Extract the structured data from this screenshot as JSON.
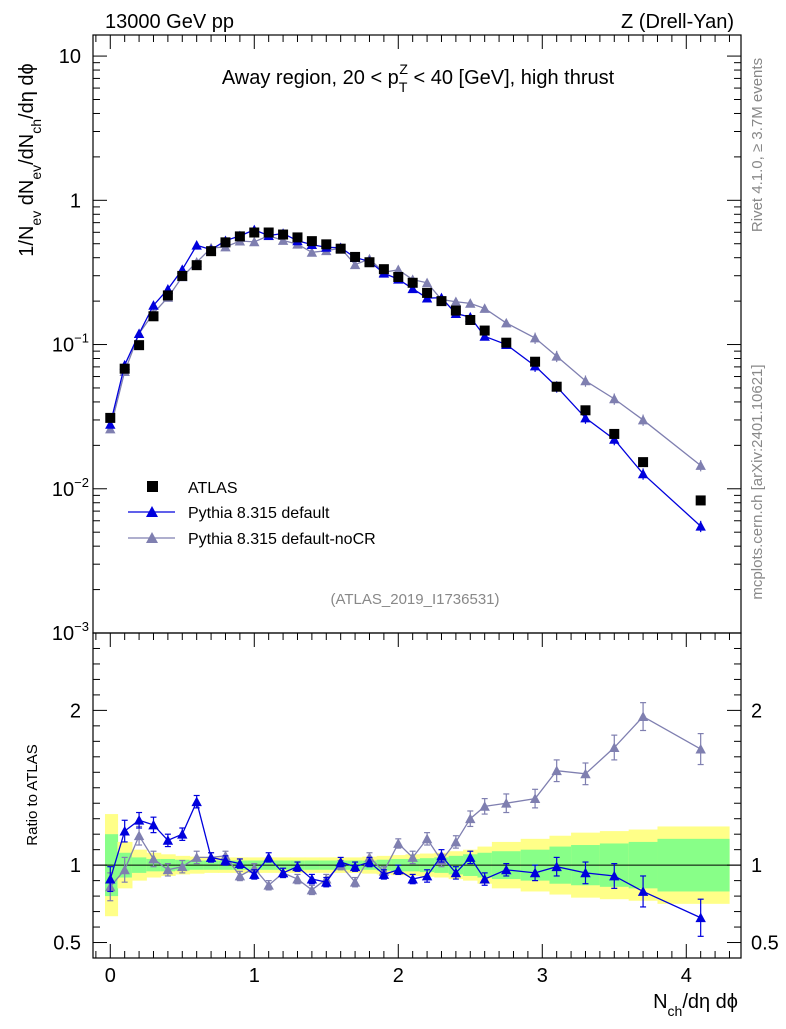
{
  "header": {
    "left": "13000 GeV pp",
    "right": "Z (Drell-Yan)"
  },
  "side": {
    "rivet": "Rivet 4.1.0, ≥ 3.7M events",
    "mcplots": "mcplots.cern.ch [arXiv:2401.10621]"
  },
  "colors": {
    "atlas": "#000000",
    "pythia_default": "#0000dd",
    "pythia_nocr": "#7f7fb0",
    "band_inner": "#88ff88",
    "band_outer": "#ffff88"
  },
  "chart_data": [
    {
      "type": "scatter",
      "title": "Away region, 20 < pT^Z < 40 [GeV], high thrust",
      "title_parts": {
        "pre": "Away region, 20 < p",
        "sub": "T",
        "sup": "Z",
        "post": " < 40 [GeV], high thrust"
      },
      "analysis_id": "(ATLAS_2019_I1736531)",
      "ylabel": "1/N_ev dN_ev/dN_ch/dη dϕ",
      "yscale": "log",
      "ylim": [
        0.001,
        14
      ],
      "xlim": [
        -0.12,
        4.38
      ],
      "y_ticks": [
        {
          "v": 10,
          "label": "10"
        },
        {
          "v": 1,
          "label": "1"
        },
        {
          "v": 0.1,
          "label": "10",
          "exp": "−1"
        },
        {
          "v": 0.01,
          "label": "10",
          "exp": "−2"
        },
        {
          "v": 0.001,
          "label": "10",
          "exp": "−3"
        }
      ],
      "legend": [
        "ATLAS",
        "Pythia 8.315 default",
        "Pythia 8.315 default-noCR"
      ],
      "legend_position": "middle-left",
      "x": [
        0.0,
        0.1,
        0.2,
        0.3,
        0.4,
        0.5,
        0.6,
        0.7,
        0.8,
        0.9,
        1.0,
        1.1,
        1.2,
        1.3,
        1.4,
        1.5,
        1.6,
        1.7,
        1.8,
        1.9,
        2.0,
        2.1,
        2.2,
        2.3,
        2.4,
        2.5,
        2.6,
        2.75,
        2.95,
        3.1,
        3.3,
        3.5,
        3.7,
        4.1
      ],
      "series": [
        {
          "name": "ATLAS",
          "marker": "square",
          "values": [
            0.031,
            0.068,
            0.099,
            0.157,
            0.219,
            0.299,
            0.355,
            0.444,
            0.511,
            0.562,
            0.598,
            0.598,
            0.579,
            0.553,
            0.521,
            0.495,
            0.462,
            0.405,
            0.372,
            0.333,
            0.294,
            0.268,
            0.228,
            0.2,
            0.172,
            0.148,
            0.125,
            0.103,
            0.076,
            0.051,
            0.035,
            0.024,
            0.0153,
            0.0083
          ]
        },
        {
          "name": "Pythia 8.315 default",
          "marker": "triangle",
          "values": [
            0.028,
            0.072,
            0.119,
            0.187,
            0.242,
            0.331,
            0.488,
            0.455,
            0.525,
            0.567,
            0.624,
            0.569,
            0.589,
            0.524,
            0.493,
            0.472,
            0.469,
            0.401,
            0.377,
            0.312,
            0.284,
            0.244,
            0.21,
            0.211,
            0.164,
            0.155,
            0.114,
            0.1,
            0.071,
            0.051,
            0.031,
            0.022,
            0.0127,
            0.0055
          ]
        },
        {
          "name": "Pythia 8.315 default-noCR",
          "marker": "triangle",
          "values": [
            0.026,
            0.065,
            0.119,
            0.165,
            0.212,
            0.295,
            0.372,
            0.467,
            0.475,
            0.522,
            0.515,
            0.568,
            0.527,
            0.496,
            0.436,
            0.447,
            0.466,
            0.358,
            0.392,
            0.317,
            0.33,
            0.282,
            0.268,
            0.205,
            0.198,
            0.193,
            0.178,
            0.141,
            0.111,
            0.083,
            0.056,
            0.042,
            0.03,
            0.0145
          ]
        }
      ]
    },
    {
      "type": "scatter",
      "ylabel": "Ratio to ATLAS",
      "xlabel": "N_ch/dη dϕ",
      "xlim": [
        -0.12,
        4.38
      ],
      "ylim": [
        0.4,
        2.5
      ],
      "y_ticks": [
        {
          "v": 0.5,
          "label": "0.5"
        },
        {
          "v": 1,
          "label": "1"
        },
        {
          "v": 2,
          "label": "2"
        }
      ],
      "x_ticks": [
        {
          "v": 0,
          "label": "0"
        },
        {
          "v": 1,
          "label": "1"
        },
        {
          "v": 2,
          "label": "2"
        },
        {
          "v": 3,
          "label": "3"
        },
        {
          "v": 4,
          "label": "4"
        }
      ],
      "x": [
        0.0,
        0.1,
        0.2,
        0.3,
        0.4,
        0.5,
        0.6,
        0.7,
        0.8,
        0.9,
        1.0,
        1.1,
        1.2,
        1.3,
        1.4,
        1.5,
        1.6,
        1.7,
        1.8,
        1.9,
        2.0,
        2.1,
        2.2,
        2.3,
        2.4,
        2.5,
        2.6,
        2.75,
        2.95,
        3.1,
        3.3,
        3.5,
        3.7,
        4.1
      ],
      "band_edges": [
        -0.05,
        0.05,
        0.15,
        0.25,
        0.35,
        0.45,
        0.55,
        0.65,
        0.75,
        0.85,
        0.95,
        1.05,
        1.15,
        1.25,
        1.35,
        1.45,
        1.55,
        1.65,
        1.75,
        1.85,
        1.95,
        2.05,
        2.15,
        2.25,
        2.35,
        2.45,
        2.55,
        2.65,
        2.85,
        3.05,
        3.2,
        3.4,
        3.6,
        3.8,
        4.4
      ],
      "band_inner": [
        0.2,
        0.08,
        0.05,
        0.04,
        0.04,
        0.035,
        0.03,
        0.03,
        0.03,
        0.03,
        0.03,
        0.03,
        0.03,
        0.03,
        0.03,
        0.03,
        0.03,
        0.03,
        0.03,
        0.035,
        0.04,
        0.04,
        0.045,
        0.05,
        0.06,
        0.07,
        0.08,
        0.09,
        0.1,
        0.12,
        0.13,
        0.14,
        0.15,
        0.17
      ],
      "band_outer": [
        0.33,
        0.15,
        0.1,
        0.08,
        0.07,
        0.06,
        0.055,
        0.05,
        0.05,
        0.05,
        0.05,
        0.05,
        0.05,
        0.05,
        0.05,
        0.05,
        0.05,
        0.05,
        0.055,
        0.06,
        0.065,
        0.07,
        0.075,
        0.08,
        0.09,
        0.1,
        0.12,
        0.15,
        0.17,
        0.19,
        0.21,
        0.22,
        0.23,
        0.25
      ],
      "series": [
        {
          "name": "Pythia 8.315 default",
          "values": [
            0.91,
            1.22,
            1.29,
            1.26,
            1.16,
            1.2,
            1.41,
            1.05,
            1.03,
            1.01,
            0.94,
            1.05,
            0.95,
            0.99,
            0.91,
            0.89,
            1.02,
            0.99,
            1.02,
            0.94,
            0.97,
            0.91,
            0.93,
            1.06,
            0.95,
            1.05,
            0.91,
            0.97,
            0.95,
            0.99,
            0.95,
            0.93,
            0.83,
            0.66
          ],
          "err": [
            0.08,
            0.07,
            0.05,
            0.05,
            0.04,
            0.04,
            0.04,
            0.03,
            0.03,
            0.03,
            0.03,
            0.03,
            0.03,
            0.03,
            0.03,
            0.03,
            0.03,
            0.03,
            0.03,
            0.03,
            0.03,
            0.03,
            0.04,
            0.04,
            0.04,
            0.04,
            0.04,
            0.04,
            0.05,
            0.06,
            0.07,
            0.08,
            0.1,
            0.12
          ]
        },
        {
          "name": "Pythia 8.315 default-noCR",
          "values": [
            0.86,
            0.97,
            1.19,
            1.04,
            0.97,
            0.99,
            1.05,
            1.05,
            1.06,
            0.93,
            0.98,
            0.87,
            0.95,
            0.91,
            0.84,
            0.91,
            1.0,
            0.89,
            1.05,
            0.96,
            1.14,
            1.05,
            1.17,
            1.03,
            1.15,
            1.3,
            1.38,
            1.4,
            1.43,
            1.61,
            1.59,
            1.76,
            1.96,
            1.75
          ],
          "err": [
            0.09,
            0.08,
            0.06,
            0.05,
            0.04,
            0.04,
            0.04,
            0.03,
            0.03,
            0.03,
            0.03,
            0.03,
            0.03,
            0.03,
            0.03,
            0.03,
            0.03,
            0.03,
            0.03,
            0.03,
            0.03,
            0.04,
            0.04,
            0.04,
            0.04,
            0.05,
            0.05,
            0.06,
            0.06,
            0.07,
            0.07,
            0.08,
            0.09,
            0.1
          ]
        }
      ]
    }
  ]
}
